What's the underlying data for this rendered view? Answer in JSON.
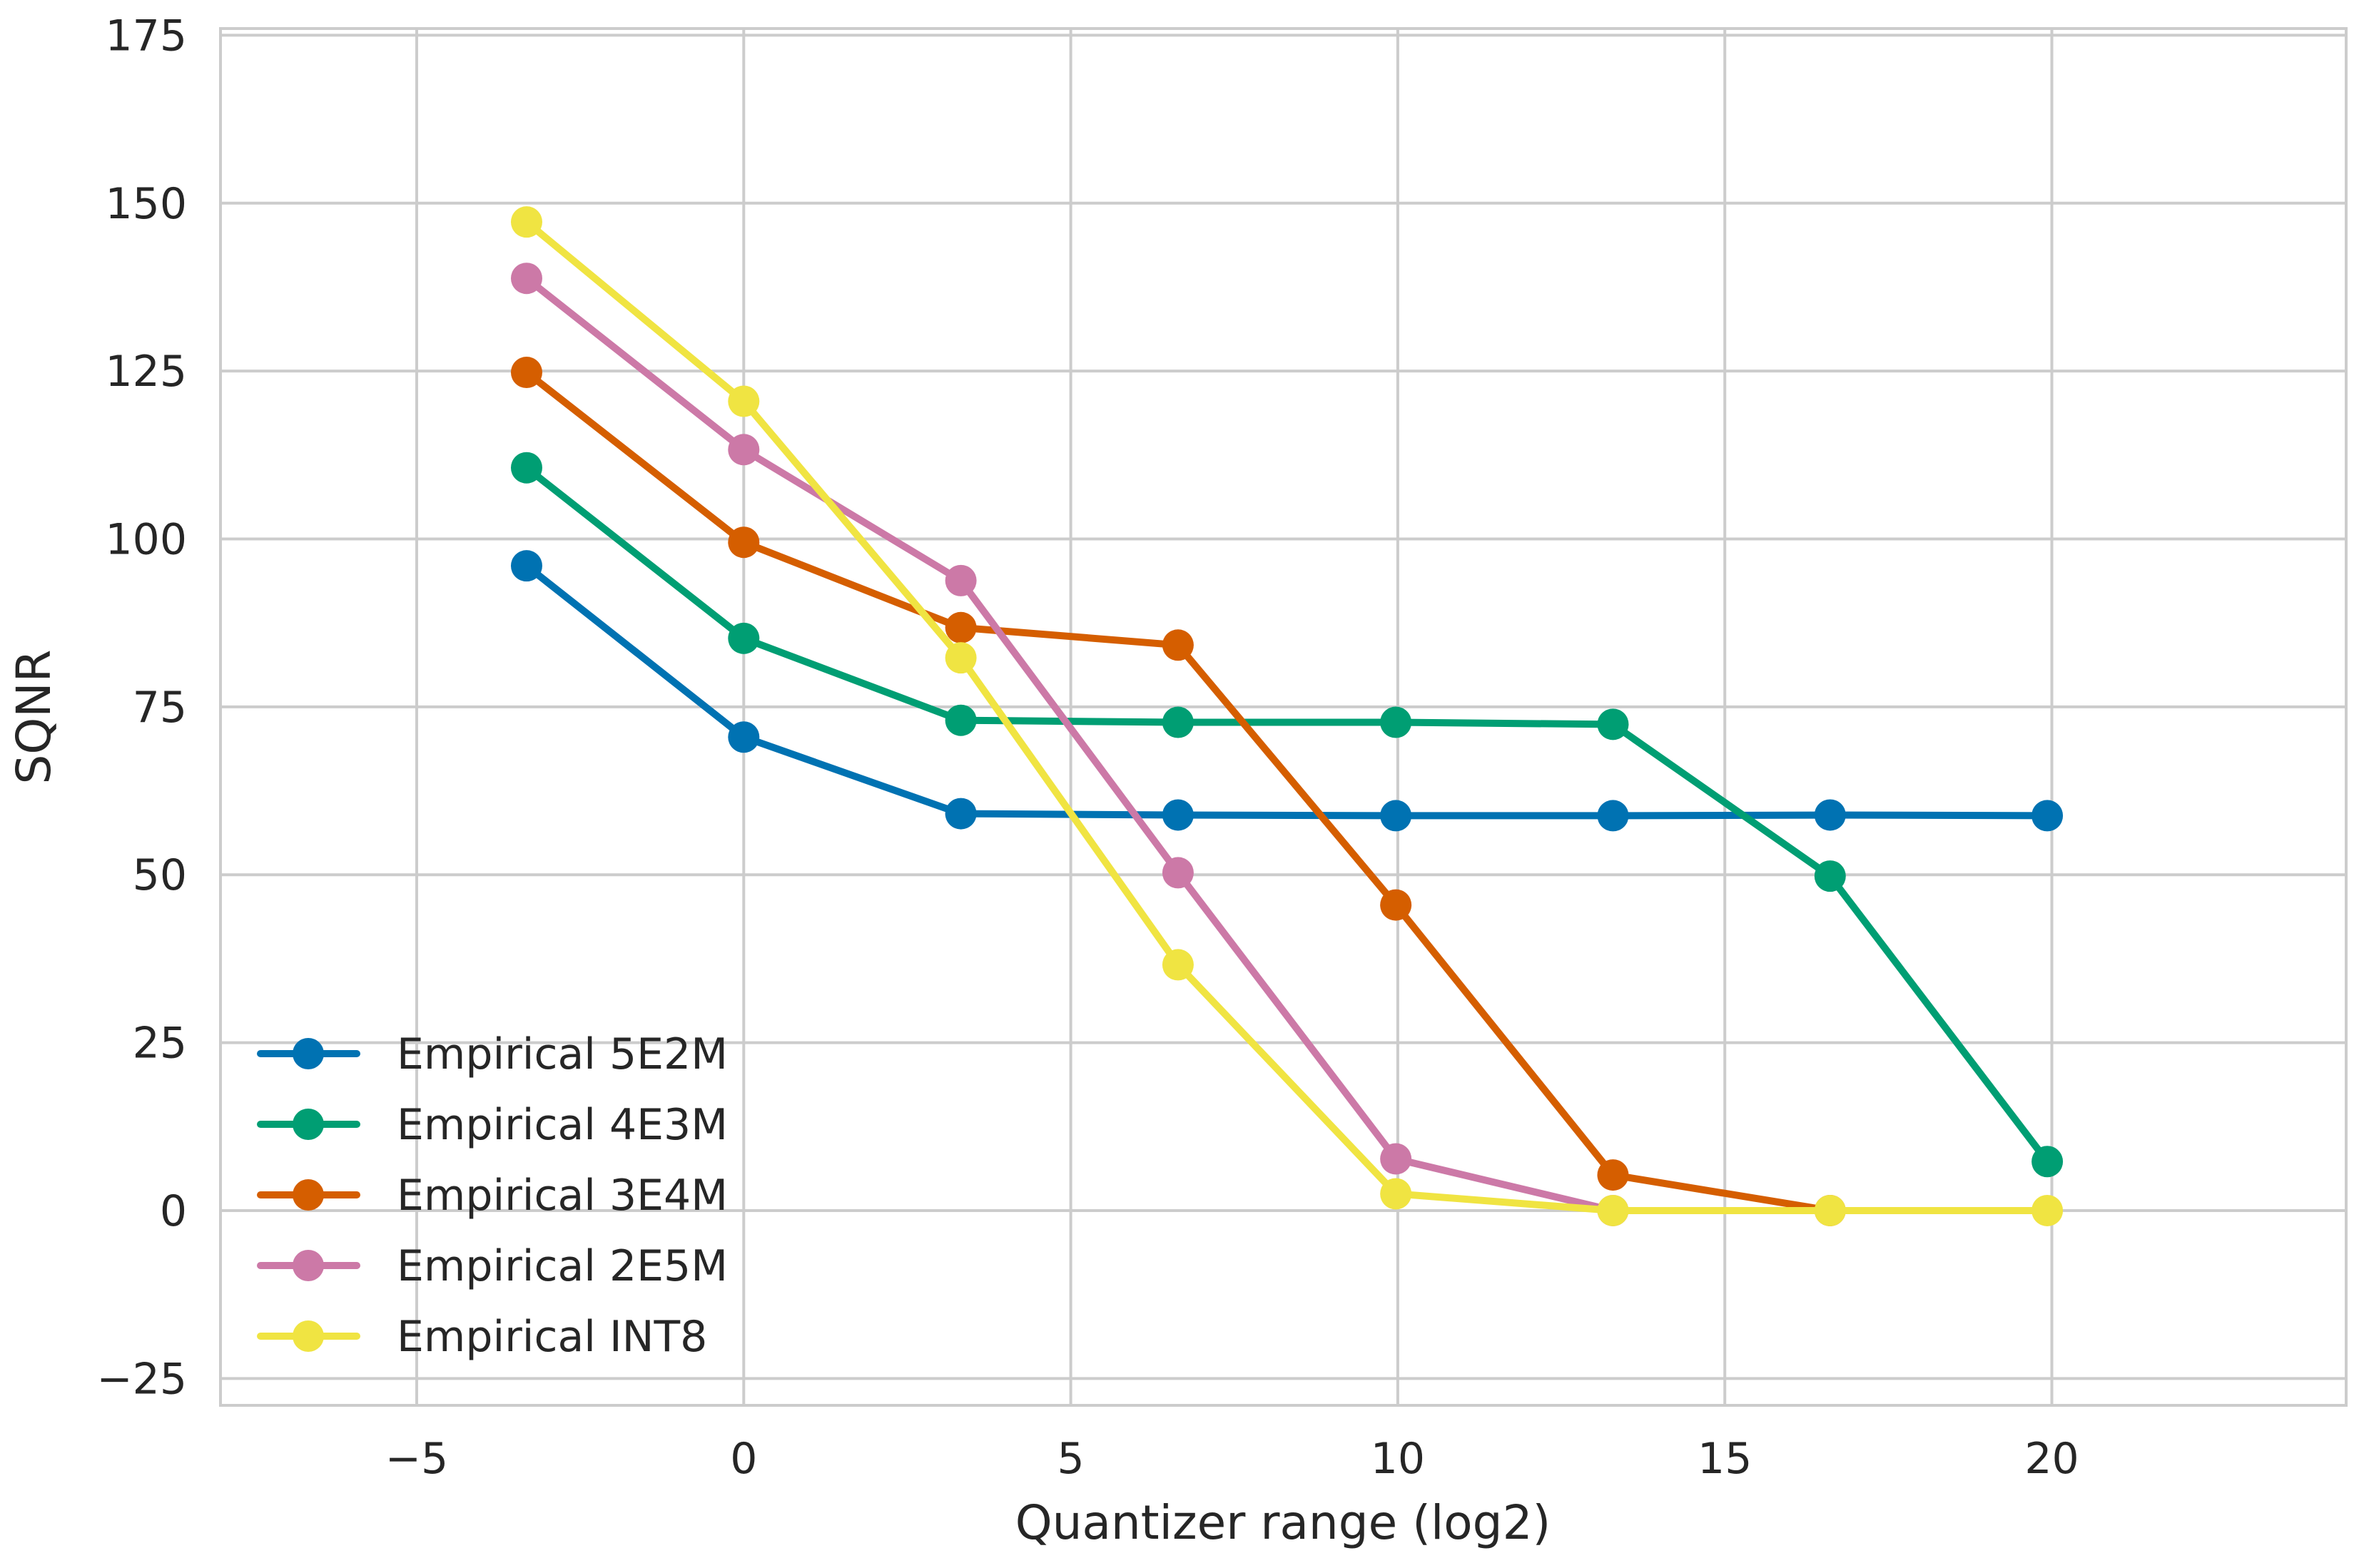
{
  "chart_data": {
    "type": "line",
    "xlabel": "Quantizer range (log2)",
    "ylabel": "SQNR",
    "xlim": [
      -8,
      24.5
    ],
    "ylim": [
      -29,
      176
    ],
    "grid": true,
    "legend_position": "lower-left",
    "xticks": [
      -5,
      0,
      5,
      10,
      15,
      20
    ],
    "xtick_labels": [
      "−5",
      "0",
      "5",
      "10",
      "15",
      "20"
    ],
    "yticks": [
      -25,
      0,
      25,
      50,
      75,
      100,
      125,
      150,
      175
    ],
    "ytick_labels": [
      "−25",
      "0",
      "25",
      "50",
      "75",
      "100",
      "125",
      "150",
      "175"
    ],
    "x": [
      -3.32,
      0,
      3.32,
      6.64,
      9.97,
      13.29,
      16.61,
      19.93
    ],
    "series": [
      {
        "name": "Empirical 5E2M",
        "color": "#0072b2",
        "x": [
          -3.32,
          0,
          3.32,
          6.64,
          9.97,
          13.29,
          16.61,
          19.93
        ],
        "values": [
          96,
          70.5,
          59.1,
          58.9,
          58.8,
          58.8,
          58.9,
          58.8
        ]
      },
      {
        "name": "Empirical 4E3M",
        "color": "#009e73",
        "x": [
          -3.32,
          0,
          3.32,
          6.64,
          9.97,
          13.29,
          16.61,
          19.93
        ],
        "values": [
          110.6,
          85.2,
          73,
          72.7,
          72.7,
          72.4,
          49.8,
          7.3
        ]
      },
      {
        "name": "Empirical 3E4M",
        "color": "#d55e00",
        "x": [
          -3.32,
          0,
          3.32,
          6.64,
          9.97,
          13.29,
          16.61
        ],
        "values": [
          124.8,
          99.5,
          86.8,
          84.2,
          45.5,
          5.3,
          0
        ]
      },
      {
        "name": "Empirical 2E5M",
        "color": "#cc79a7",
        "x": [
          -3.32,
          0,
          3.32,
          6.64,
          9.97,
          13.29
        ],
        "values": [
          138.8,
          113.3,
          93.8,
          50.3,
          7.7,
          0
        ]
      },
      {
        "name": "Empirical INT8",
        "color": "#f0e442",
        "x": [
          -3.32,
          0,
          3.32,
          6.64,
          9.97,
          13.29,
          16.61,
          19.93
        ],
        "values": [
          147.2,
          120.5,
          82.3,
          36.6,
          2.5,
          0,
          0,
          0
        ]
      }
    ]
  }
}
